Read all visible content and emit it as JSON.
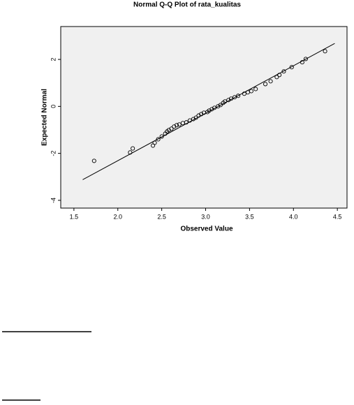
{
  "chart_data": {
    "type": "scatter",
    "title": "Normal Q-Q Plot of rata_kualitas",
    "x_label": "Observed Value",
    "y_label": "Expected Normal",
    "xlim": [
      1.35,
      4.61
    ],
    "ylim": [
      -4.33,
      3.4
    ],
    "xticks": [
      1.5,
      {
        "value": 2,
        "label": "2.0"
      },
      2.5,
      {
        "value": 3,
        "label": "3.0"
      },
      3.5,
      {
        "value": 4,
        "label": "4.0"
      },
      4.5
    ],
    "yticks": [
      -4,
      -2,
      0,
      2
    ],
    "background": "#f0f0f0",
    "color": "#000000",
    "x": [
      1.73,
      2.14,
      2.17,
      2.4,
      2.42,
      2.46,
      2.5,
      2.54,
      2.56,
      2.58,
      2.61,
      2.64,
      2.67,
      2.7,
      2.74,
      2.78,
      2.82,
      2.86,
      2.89,
      2.92,
      2.95,
      2.98,
      3.02,
      3.04,
      3.07,
      3.1,
      3.14,
      3.17,
      3.2,
      3.22,
      3.26,
      3.29,
      3.33,
      3.37,
      3.44,
      3.48,
      3.52,
      3.57,
      3.68,
      3.74,
      3.81,
      3.84,
      3.89,
      3.98,
      4.1,
      4.14,
      4.36
    ],
    "y": [
      -2.32,
      -1.96,
      -1.79,
      -1.67,
      -1.55,
      -1.4,
      -1.28,
      -1.16,
      -1.07,
      -1.01,
      -0.95,
      -0.86,
      -0.8,
      -0.77,
      -0.71,
      -0.68,
      -0.6,
      -0.54,
      -0.48,
      -0.39,
      -0.33,
      -0.27,
      -0.24,
      -0.18,
      -0.12,
      -0.06,
      0,
      0.06,
      0.15,
      0.21,
      0.27,
      0.33,
      0.39,
      0.45,
      0.54,
      0.6,
      0.65,
      0.74,
      0.95,
      1.07,
      1.25,
      1.34,
      1.49,
      1.67,
      1.88,
      2.02,
      2.35
    ],
    "reference_line": {
      "x": [
        1.6,
        4.47
      ],
      "y": [
        -3.12,
        2.68
      ]
    }
  }
}
